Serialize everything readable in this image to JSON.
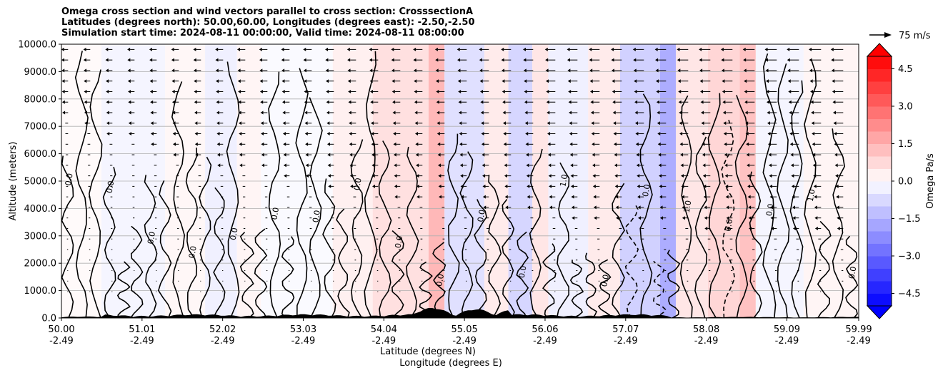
{
  "chart_data": {
    "type": "heatmap",
    "title_lines": [
      "Omega cross section and wind vectors parallel to cross section: CrosssectionA",
      "Latitudes (degrees north): 50.00,60.00, Longitudes (degrees east): -2.50,-2.50",
      "Simulation start time: 2024-08-11 00:00:00, Valid time: 2024-08-11 08:00:00"
    ],
    "ylabel": "Altitude (meters)",
    "xlabel_lines": [
      "Latitude (degrees N)",
      "Longitude (degrees E)"
    ],
    "ylim": [
      0,
      10000
    ],
    "xlim": [
      50.0,
      59.99
    ],
    "yticks": [
      0,
      1000,
      2000,
      3000,
      4000,
      5000,
      6000,
      7000,
      8000,
      9000,
      10000
    ],
    "ytick_labels": [
      "0.0",
      "1000.0",
      "2000.0",
      "3000.0",
      "4000.0",
      "5000.0",
      "6000.0",
      "7000.0",
      "8000.0",
      "9000.0",
      "10000.0"
    ],
    "xticks": [
      {
        "lat": "50.00",
        "lon": "-2.49"
      },
      {
        "lat": "51.01",
        "lon": "-2.49"
      },
      {
        "lat": "52.02",
        "lon": "-2.49"
      },
      {
        "lat": "53.03",
        "lon": "-2.49"
      },
      {
        "lat": "54.04",
        "lon": "-2.49"
      },
      {
        "lat": "55.05",
        "lon": "-2.49"
      },
      {
        "lat": "56.06",
        "lon": "-2.49"
      },
      {
        "lat": "57.07",
        "lon": "-2.49"
      },
      {
        "lat": "58.08",
        "lon": "-2.49"
      },
      {
        "lat": "59.09",
        "lon": "-2.49"
      },
      {
        "lat": "59.99",
        "lon": "-2.49"
      }
    ],
    "grid": "horizontal",
    "colorbar": {
      "label": "Omega Pa/s",
      "range": [
        -5.0,
        5.0
      ],
      "step": 0.5,
      "extend": "both",
      "ticks": [
        4.5,
        3.0,
        1.5,
        0.0,
        -1.5,
        -3.0,
        -4.5
      ],
      "tick_labels": [
        "4.5",
        "3.0",
        "1.5",
        "0.0",
        "−1.5",
        "−3.0",
        "−4.5"
      ],
      "colormap": "bwr"
    },
    "quiver_key": {
      "label": "75 m/s",
      "value": 75
    },
    "contour_labels": [
      "0.0",
      "1.0",
      "-1.0"
    ],
    "fill_bands": [
      {
        "x0": 50.0,
        "x1": 50.5,
        "value": 0.1
      },
      {
        "x0": 50.5,
        "x1": 51.3,
        "value": -0.2
      },
      {
        "x0": 51.3,
        "x1": 51.8,
        "value": 0.15
      },
      {
        "x0": 51.8,
        "x1": 52.2,
        "value": -0.3
      },
      {
        "x0": 52.2,
        "x1": 52.5,
        "value": 0.2
      },
      {
        "x0": 52.5,
        "x1": 53.4,
        "value": -0.1
      },
      {
        "x0": 53.4,
        "x1": 53.9,
        "value": 0.3
      },
      {
        "x0": 53.9,
        "x1": 54.6,
        "value": 0.6
      },
      {
        "x0": 54.6,
        "x1": 54.8,
        "value": 1.4
      },
      {
        "x0": 54.8,
        "x1": 55.3,
        "value": -0.6
      },
      {
        "x0": 55.3,
        "x1": 55.6,
        "value": 0.4
      },
      {
        "x0": 55.6,
        "x1": 55.9,
        "value": -0.8
      },
      {
        "x0": 55.9,
        "x1": 56.1,
        "value": 0.5
      },
      {
        "x0": 56.1,
        "x1": 56.6,
        "value": -0.3
      },
      {
        "x0": 56.6,
        "x1": 57.0,
        "value": 0.4
      },
      {
        "x0": 57.0,
        "x1": 57.5,
        "value": -0.9
      },
      {
        "x0": 57.5,
        "x1": 57.7,
        "value": -1.6
      },
      {
        "x0": 57.7,
        "x1": 58.1,
        "value": 0.5
      },
      {
        "x0": 58.1,
        "x1": 58.5,
        "value": 0.8
      },
      {
        "x0": 58.5,
        "x1": 58.7,
        "value": 1.2
      },
      {
        "x0": 58.7,
        "x1": 59.3,
        "value": -0.2
      },
      {
        "x0": 59.3,
        "x1": 59.99,
        "value": 0.2
      }
    ],
    "colors": {
      "positive": "#ff0000",
      "negative": "#0000ff",
      "contour": "#000000",
      "terrain": "#000000",
      "grid": "#b0b0b0"
    }
  }
}
